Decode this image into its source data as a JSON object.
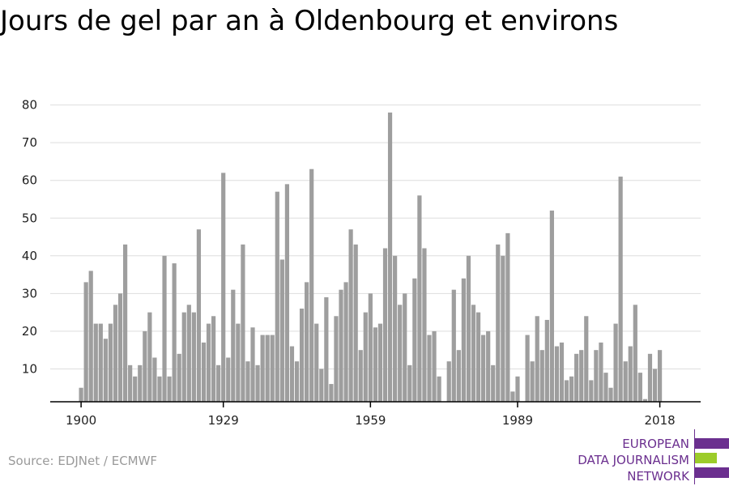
{
  "title": "Jours de gel par an à Oldenbourg et environs",
  "source": "Source: EDJNet / ECMWF",
  "logo": {
    "lines": [
      "EUROPEAN",
      "DATA JOURNALISM",
      "NETWORK"
    ],
    "colors": {
      "purple": "#6b2f8f",
      "green": "#9ccc2a"
    }
  },
  "colors": {
    "bar": "#9e9e9e",
    "grid": "#dedede",
    "axis": "#000000",
    "text": "#222222"
  },
  "chart_data": {
    "type": "bar",
    "title": "Jours de gel par an à Oldenbourg et environs",
    "xlabel": "",
    "ylabel": "",
    "x": [
      1900,
      1901,
      1902,
      1903,
      1904,
      1905,
      1906,
      1907,
      1908,
      1909,
      1910,
      1911,
      1912,
      1913,
      1914,
      1915,
      1916,
      1917,
      1918,
      1919,
      1920,
      1921,
      1922,
      1923,
      1924,
      1925,
      1926,
      1927,
      1928,
      1929,
      1930,
      1931,
      1932,
      1933,
      1934,
      1935,
      1936,
      1937,
      1938,
      1939,
      1940,
      1941,
      1942,
      1943,
      1944,
      1945,
      1946,
      1947,
      1948,
      1949,
      1950,
      1951,
      1952,
      1953,
      1954,
      1955,
      1956,
      1957,
      1958,
      1959,
      1960,
      1961,
      1962,
      1963,
      1964,
      1965,
      1966,
      1967,
      1968,
      1969,
      1970,
      1971,
      1972,
      1973,
      1974,
      1975,
      1976,
      1977,
      1978,
      1979,
      1980,
      1981,
      1982,
      1983,
      1984,
      1985,
      1986,
      1987,
      1988,
      1989,
      1990,
      1991,
      1992,
      1993,
      1994,
      1995,
      1996,
      1997,
      1998,
      1999,
      2000,
      2001,
      2002,
      2003,
      2004,
      2005,
      2006,
      2007,
      2008,
      2009,
      2010,
      2011,
      2012,
      2013,
      2014,
      2015,
      2016,
      2017,
      2018
    ],
    "values": [
      5,
      33,
      36,
      22,
      22,
      18,
      22,
      27,
      30,
      43,
      11,
      8,
      11,
      20,
      25,
      13,
      8,
      40,
      8,
      38,
      14,
      25,
      27,
      25,
      47,
      17,
      22,
      24,
      11,
      62,
      13,
      31,
      22,
      43,
      12,
      21,
      11,
      19,
      19,
      19,
      57,
      39,
      59,
      16,
      12,
      26,
      33,
      63,
      22,
      10,
      29,
      6,
      24,
      31,
      33,
      47,
      43,
      15,
      25,
      30,
      21,
      22,
      42,
      78,
      40,
      27,
      30,
      11,
      34,
      56,
      42,
      19,
      20,
      8,
      0,
      12,
      31,
      15,
      34,
      40,
      27,
      25,
      19,
      20,
      11,
      43,
      40,
      46,
      4,
      8,
      0,
      19,
      12,
      24,
      15,
      23,
      52,
      16,
      17,
      7,
      8,
      14,
      15,
      24,
      7,
      15,
      17,
      9,
      5,
      22,
      61,
      12,
      16,
      27,
      9,
      2,
      14,
      10,
      15
    ],
    "x_ticks": [
      1900,
      1929,
      1959,
      1989,
      2018
    ],
    "y_ticks": [
      10,
      20,
      30,
      40,
      50,
      60,
      70,
      80
    ],
    "ylim": [
      0,
      80
    ],
    "grid": true,
    "legend": "none"
  }
}
